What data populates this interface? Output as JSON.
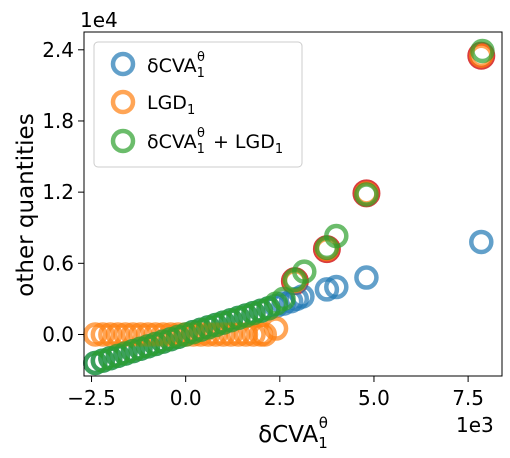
{
  "chart_data": {
    "type": "scatter",
    "title": "",
    "xlabel": "δCVA",
    "xlabel_sup": "θ",
    "xlabel_sub": "1",
    "ylabel": "other quantities",
    "x_exponent_label": "1e3",
    "y_exponent_label": "1e4",
    "xlim": [
      -2.7,
      8.4
    ],
    "ylim": [
      -0.35,
      2.55
    ],
    "x_ticks": [
      -2.5,
      0.0,
      2.5,
      5.0,
      7.5
    ],
    "x_tick_labels": [
      "−2.5",
      "0.0",
      "2.5",
      "5.0",
      "7.5"
    ],
    "y_ticks": [
      0.0,
      0.6,
      1.2,
      1.8,
      2.4
    ],
    "y_tick_labels": [
      "0.0",
      "0.6",
      "1.2",
      "1.8",
      "2.4"
    ],
    "grid": false,
    "legend_position": "top-left",
    "marker": "open-circle",
    "series": [
      {
        "name": "δCVA",
        "name_sup": "θ",
        "name_sub": "1",
        "color": "#1f77b4",
        "x": [
          -2.4,
          -2.2,
          -2.0,
          -1.8,
          -1.6,
          -1.4,
          -1.2,
          -1.0,
          -0.8,
          -0.6,
          -0.4,
          -0.2,
          0.0,
          0.2,
          0.4,
          0.6,
          0.8,
          1.0,
          1.2,
          1.4,
          1.6,
          1.8,
          2.0,
          2.2,
          2.4,
          2.6,
          2.8,
          2.95,
          3.1,
          3.75,
          4.0,
          4.8,
          7.85
        ],
        "y": [
          -0.24,
          -0.22,
          -0.2,
          -0.18,
          -0.16,
          -0.14,
          -0.12,
          -0.1,
          -0.08,
          -0.06,
          -0.04,
          -0.02,
          0.0,
          0.02,
          0.04,
          0.06,
          0.08,
          0.1,
          0.12,
          0.14,
          0.16,
          0.18,
          0.2,
          0.22,
          0.24,
          0.26,
          0.28,
          0.3,
          0.32,
          0.38,
          0.4,
          0.48,
          0.78
        ]
      },
      {
        "name": "LGD",
        "name_sup": "",
        "name_sub": "1",
        "color": "#ff7f0e",
        "x": [
          -2.4,
          -2.2,
          -2.0,
          -1.8,
          -1.6,
          -1.4,
          -1.2,
          -1.0,
          -0.8,
          -0.6,
          -0.4,
          -0.2,
          0.0,
          0.2,
          0.4,
          0.6,
          0.8,
          1.0,
          1.2,
          1.4,
          1.6,
          1.8,
          2.0,
          2.1,
          2.4,
          2.9,
          3.75,
          4.8,
          7.85
        ],
        "y": [
          0.0,
          0.0,
          0.0,
          0.0,
          0.0,
          0.0,
          0.0,
          0.0,
          0.0,
          0.0,
          0.0,
          0.0,
          0.0,
          0.0,
          0.0,
          0.0,
          0.0,
          0.0,
          0.0,
          0.0,
          0.0,
          0.0,
          0.0,
          0.0,
          0.05,
          0.45,
          0.72,
          1.19,
          2.35
        ]
      },
      {
        "name": "δCVA",
        "name_sup": "θ",
        "name_sub": "1",
        "name_suffix": " + LGD",
        "name_suffix_sub": "1",
        "color": "#2ca02c",
        "x": [
          -2.4,
          -2.2,
          -2.0,
          -1.8,
          -1.6,
          -1.4,
          -1.2,
          -1.0,
          -0.8,
          -0.6,
          -0.4,
          -0.2,
          0.0,
          0.2,
          0.4,
          0.6,
          0.8,
          1.0,
          1.2,
          1.4,
          1.6,
          1.8,
          2.0,
          2.2,
          2.4,
          2.6,
          2.9,
          3.15,
          3.75,
          4.0,
          4.8,
          7.88
        ],
        "y": [
          -0.24,
          -0.22,
          -0.2,
          -0.18,
          -0.16,
          -0.14,
          -0.12,
          -0.1,
          -0.08,
          -0.06,
          -0.04,
          -0.02,
          0.0,
          0.02,
          0.04,
          0.06,
          0.08,
          0.1,
          0.12,
          0.14,
          0.16,
          0.18,
          0.2,
          0.22,
          0.26,
          0.3,
          0.46,
          0.53,
          0.73,
          0.83,
          1.18,
          2.39
        ]
      }
    ],
    "highlighted": {
      "color": "#d62728",
      "x": [
        2.9,
        3.75,
        4.8,
        7.85
      ],
      "y": [
        0.45,
        0.72,
        1.19,
        2.35
      ]
    }
  }
}
